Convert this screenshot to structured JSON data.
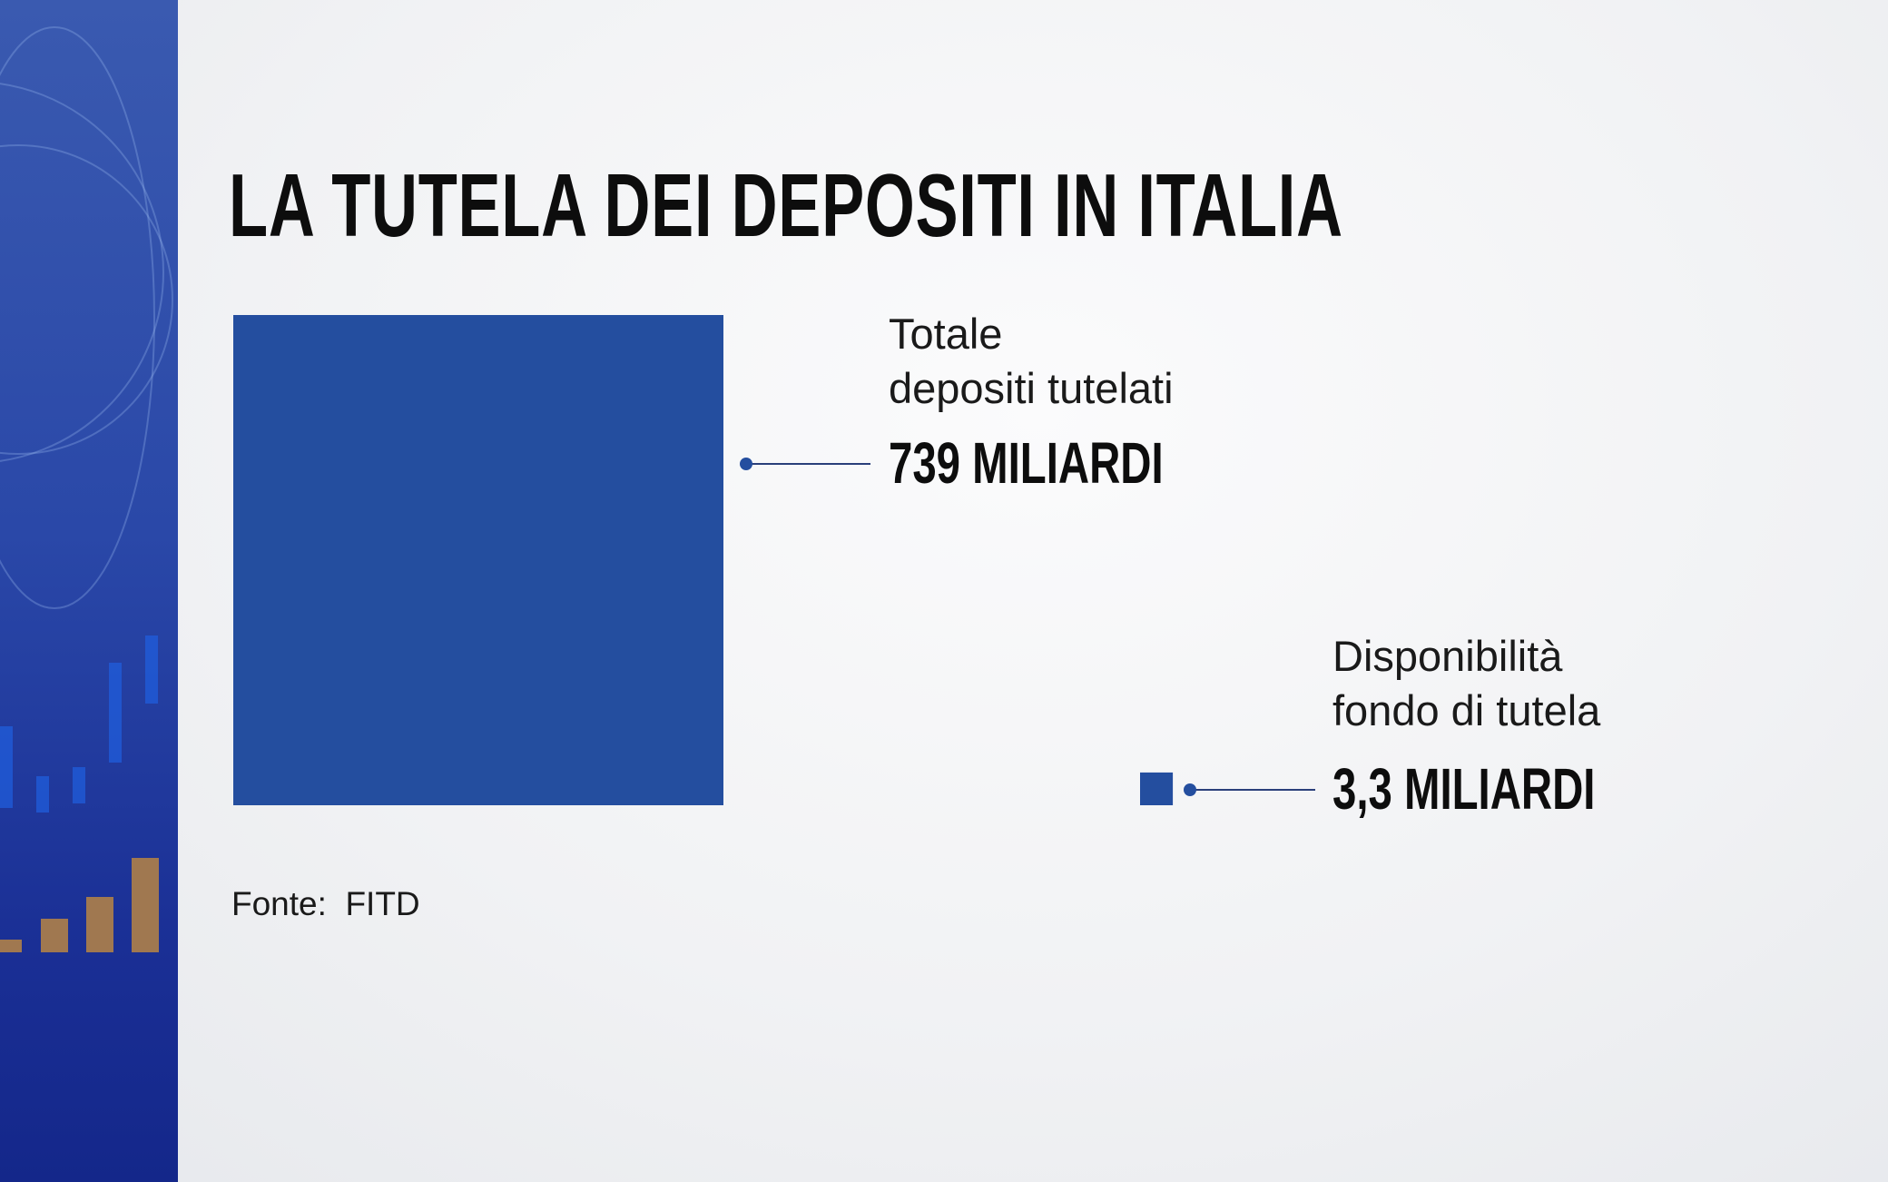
{
  "chart_data": {
    "type": "square-area",
    "title": "LA TUTELA DEI DEPOSITI IN ITALIA",
    "categories": [
      "Totale\ndepositi tutelati",
      "Disponibilità\nfondo di tutela"
    ],
    "values": [
      739,
      3.3
    ],
    "value_labels": [
      "739 MILIARDI",
      "3,3 MILIARDI"
    ],
    "color": "#244e9f",
    "source": "Fonte:  FITD"
  }
}
